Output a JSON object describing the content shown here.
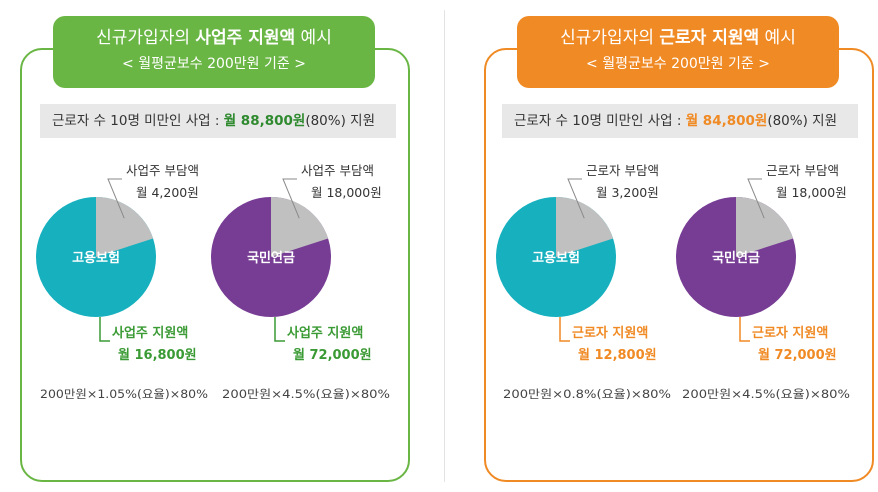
{
  "colors": {
    "green": "#6ab645",
    "orange": "#f08a24",
    "teal": "#16b0bf",
    "purple": "#773d95",
    "gray": "#c0c0c0"
  },
  "left": {
    "title_pre": "신규가입자의 ",
    "title_bold": "사업주 지원액",
    "title_post": " 예시",
    "subtitle": "< 월평균보수 200만원 기준 >",
    "summary_label": "근로자 수 10명 미만인 사업 : ",
    "summary_amount": "월 88,800원",
    "summary_rest": "(80%) 지원"
  },
  "right": {
    "title_pre": "신규가입자의 ",
    "title_bold": "근로자 지원액",
    "title_post": " 예시",
    "subtitle": "< 월평균보수 200만원 기준 >",
    "summary_label": "근로자 수 10명 미만인 사업 : ",
    "summary_amount": "월 84,800원",
    "summary_rest": "(80%) 지원"
  },
  "chart_data": [
    {
      "type": "pie",
      "name": "고용보험",
      "color": "#16b0bf",
      "slices": [
        {
          "label": "사업주 지원액",
          "value_text": "월 16,800원",
          "value": 16800
        },
        {
          "label": "사업주 부담액",
          "value_text": "월 4,200원",
          "value": 4200
        }
      ],
      "formula": "200만원×1.05%(요율)×80%"
    },
    {
      "type": "pie",
      "name": "국민연금",
      "color": "#773d95",
      "slices": [
        {
          "label": "사업주 지원액",
          "value_text": "월 72,000원",
          "value": 72000
        },
        {
          "label": "사업주 부담액",
          "value_text": "월 18,000원",
          "value": 18000
        }
      ],
      "formula": "200만원×4.5%(요율)×80%"
    },
    {
      "type": "pie",
      "name": "고용보험",
      "color": "#16b0bf",
      "slices": [
        {
          "label": "근로자 지원액",
          "value_text": "월 12,800원",
          "value": 12800
        },
        {
          "label": "근로자 부담액",
          "value_text": "월 3,200원",
          "value": 3200
        }
      ],
      "formula": "200만원×0.8%(요율)×80%"
    },
    {
      "type": "pie",
      "name": "국민연금",
      "color": "#773d95",
      "slices": [
        {
          "label": "근로자 지원액",
          "value_text": "월 72,000원",
          "value": 72000
        },
        {
          "label": "근로자 부담액",
          "value_text": "월 18,000원",
          "value": 18000
        }
      ],
      "formula": "200만원×4.5%(요율)×80%"
    }
  ]
}
